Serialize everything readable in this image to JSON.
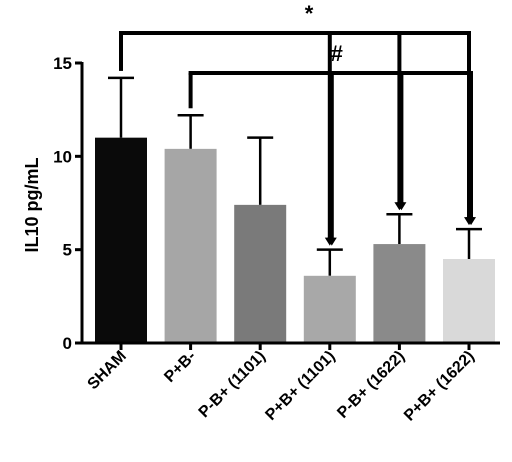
{
  "chart_data": {
    "type": "bar",
    "ylabel": "IL10 pg/mL",
    "ylim": [
      0,
      15
    ],
    "yticks": [
      0,
      5,
      10,
      15
    ],
    "categories": [
      "SHAM",
      "P+B-",
      "P-B+ (1101)",
      "P+B+ (1101)",
      "P-B+ (1622)",
      "P+B+ (1622)"
    ],
    "values": [
      11.0,
      10.4,
      7.4,
      3.6,
      5.3,
      4.5
    ],
    "errors": [
      3.2,
      1.8,
      3.6,
      1.4,
      1.6,
      1.6
    ],
    "colors": [
      "#0a0a0a",
      "#a6a6a6",
      "#7a7a7a",
      "#a8a8a8",
      "#8a8a8a",
      "#d9d9d9"
    ],
    "significance": [
      {
        "symbol": "*",
        "from": 0,
        "to": [
          3,
          4,
          5
        ]
      },
      {
        "symbol": "#",
        "from": 1,
        "to": [
          3,
          4,
          5
        ]
      }
    ]
  }
}
